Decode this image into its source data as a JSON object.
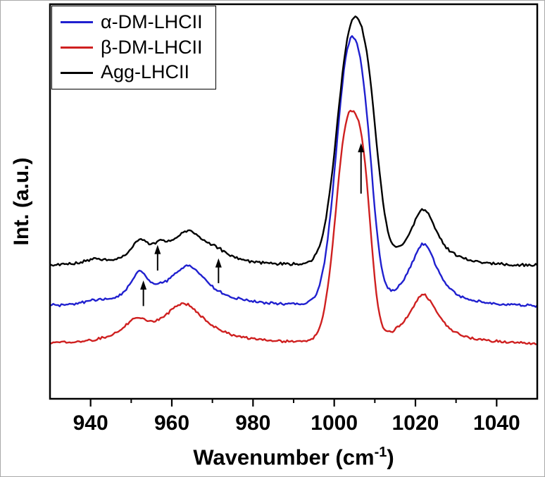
{
  "figure": {
    "background": "#ffffff",
    "xlabel_pre": "Wavenumber (cm",
    "xlabel_sup": "-1",
    "xlabel_post": ")",
    "ylabel": "Int. (a.u.)"
  },
  "legend": {
    "border_color": "#000000",
    "items": [
      {
        "label": "α-DM-LHCII",
        "color": "#2020cf"
      },
      {
        "label": "β-DM-LHCII",
        "color": "#cf2020"
      },
      {
        "label": "Agg-LHCII",
        "color": "#000000"
      }
    ]
  },
  "chart_data": {
    "type": "line",
    "title": "",
    "xlabel": "Wavenumber (cm⁻¹)",
    "ylabel": "Int. (a.u.)",
    "xlim": [
      930,
      1050
    ],
    "ylim": [
      0,
      1
    ],
    "x_ticks_major": [
      940,
      960,
      980,
      1000,
      1020,
      1040
    ],
    "x_ticks_minor": [
      950,
      970,
      990,
      1010,
      1030
    ],
    "y_ticks": [],
    "grid": false,
    "legend_position": "top-left",
    "series": [
      {
        "name": "β-DM-LHCII",
        "color": "#cf2020",
        "baseline": 0.137,
        "noise": 0.005,
        "peaks": [
          {
            "center": 951,
            "amplitude": 0.045,
            "width": 3.5,
            "shape": "lorentz"
          },
          {
            "center": 963,
            "amplitude": 0.1,
            "width": 6.5,
            "shape": "lorentz"
          },
          {
            "center": 1003.4,
            "amplitude": 0.55,
            "width": 3.0,
            "shape": "gauss"
          },
          {
            "center": 1007.5,
            "amplitude": 0.24,
            "width": 1.9,
            "shape": "gauss"
          },
          {
            "center": 1022,
            "amplitude": 0.125,
            "width": 4.5,
            "shape": "lorentz"
          }
        ]
      },
      {
        "name": "α-DM-LHCII",
        "color": "#2020cf",
        "baseline": 0.232,
        "noise": 0.005,
        "peaks": [
          {
            "center": 941,
            "amplitude": 0.008,
            "width": 3.0,
            "shape": "lorentz"
          },
          {
            "center": 952,
            "amplitude": 0.07,
            "width": 2.8,
            "shape": "lorentz"
          },
          {
            "center": 964,
            "amplitude": 0.1,
            "width": 6.0,
            "shape": "lorentz"
          },
          {
            "center": 1003.6,
            "amplitude": 0.62,
            "width": 3.2,
            "shape": "gauss"
          },
          {
            "center": 1007.8,
            "amplitude": 0.24,
            "width": 2.2,
            "shape": "gauss"
          },
          {
            "center": 1022,
            "amplitude": 0.16,
            "width": 4.2,
            "shape": "lorentz"
          }
        ]
      },
      {
        "name": "Agg-LHCII",
        "color": "#000000",
        "baseline": 0.335,
        "noise": 0.005,
        "peaks": [
          {
            "center": 941,
            "amplitude": 0.012,
            "width": 3.0,
            "shape": "lorentz"
          },
          {
            "center": 952,
            "amplitude": 0.05,
            "width": 2.6,
            "shape": "lorentz"
          },
          {
            "center": 957,
            "amplitude": 0.025,
            "width": 2.5,
            "shape": "lorentz"
          },
          {
            "center": 964,
            "amplitude": 0.08,
            "width": 5.0,
            "shape": "lorentz"
          },
          {
            "center": 971,
            "amplitude": 0.02,
            "width": 4.0,
            "shape": "lorentz"
          },
          {
            "center": 1004,
            "amplitude": 0.56,
            "width": 3.4,
            "shape": "gauss"
          },
          {
            "center": 1008.7,
            "amplitude": 0.26,
            "width": 2.5,
            "shape": "gauss"
          },
          {
            "center": 1022,
            "amplitude": 0.145,
            "width": 4.0,
            "shape": "lorentz"
          }
        ]
      }
    ],
    "annotations": [
      {
        "type": "arrow",
        "x": 953,
        "y_from": 0.235,
        "y_to": 0.3
      },
      {
        "type": "arrow",
        "x": 956.5,
        "y_from": 0.325,
        "y_to": 0.39
      },
      {
        "type": "arrow",
        "x": 971.5,
        "y_from": 0.293,
        "y_to": 0.356
      },
      {
        "type": "arrow",
        "x": 1006.6,
        "y_from": 0.52,
        "y_to": 0.648
      }
    ]
  }
}
